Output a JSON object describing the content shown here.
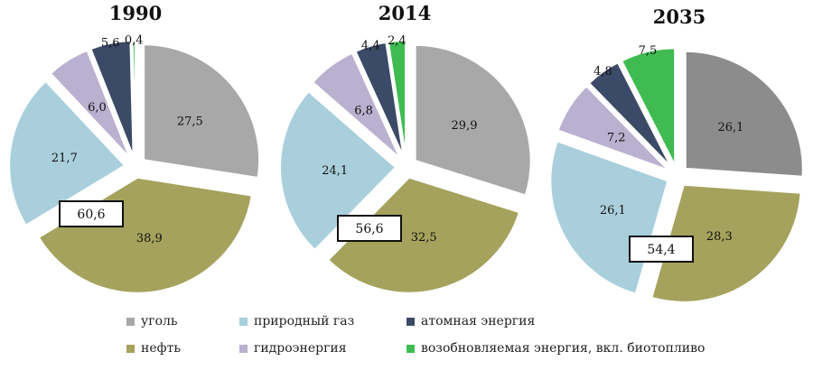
{
  "colors": {
    "coal": "#a8a8a8",
    "coal_2035": "#8c8c8c",
    "gas": "#a9cfdd",
    "oil": "#a4a25c",
    "hydro": "#bab0cf",
    "nuclear": "#3b4a66",
    "renewable": "#3fbb52"
  },
  "chart_data": [
    {
      "type": "pie",
      "title": "1990",
      "categories": [
        "уголь",
        "нефть",
        "природный газ",
        "гидроэнергия",
        "атомная энергия",
        "возобновляемая энергия, вкл. биотопливо"
      ],
      "values": [
        27.5,
        38.9,
        21.7,
        6.0,
        5.6,
        0.4
      ],
      "value_labels": [
        "27,5",
        "38,9",
        "21,7",
        "6,0",
        "5,6",
        "0,4"
      ],
      "highlight_box": "60,6"
    },
    {
      "type": "pie",
      "title": "2014",
      "categories": [
        "уголь",
        "нефть",
        "природный газ",
        "гидроэнергия",
        "атомная энергия",
        "возобновляемая энергия, вкл. биотопливо"
      ],
      "values": [
        29.9,
        32.5,
        24.1,
        6.8,
        4.4,
        2.4
      ],
      "value_labels": [
        "29,9",
        "32,5",
        "24,1",
        "6,8",
        "4,4",
        "2,4"
      ],
      "highlight_box": "56,6"
    },
    {
      "type": "pie",
      "title": "2035",
      "categories": [
        "уголь",
        "нефть",
        "природный газ",
        "гидроэнергия",
        "атомная энергия",
        "возобновляемая энергия, вкл. биотопливо"
      ],
      "values": [
        26.1,
        28.3,
        26.1,
        7.2,
        4.8,
        7.5
      ],
      "value_labels": [
        "26,1",
        "28,3",
        "26,1",
        "7,2",
        "4,8",
        "7,5"
      ],
      "highlight_box": "54,4"
    }
  ],
  "legend": [
    {
      "label": "уголь",
      "color_key": "coal"
    },
    {
      "label": "природный газ",
      "color_key": "gas"
    },
    {
      "label": "атомная энергия",
      "color_key": "nuclear"
    },
    {
      "label": "нефть",
      "color_key": "oil"
    },
    {
      "label": "гидроэнергия",
      "color_key": "hydro"
    },
    {
      "label": "возобновляемая энергия, вкл. биотопливо",
      "color_key": "renewable"
    }
  ]
}
